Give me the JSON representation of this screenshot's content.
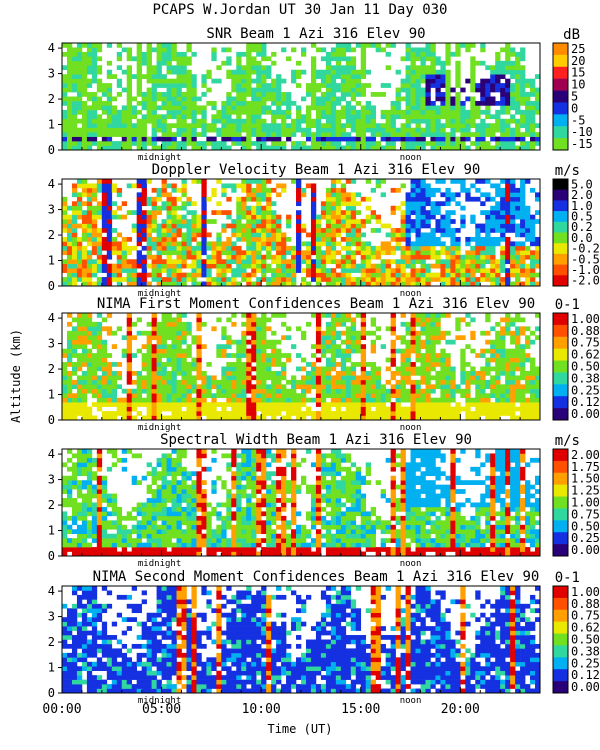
{
  "header": {
    "title": "PCAPS W.Jordan UT  30 Jan 11 Day 030"
  },
  "x_axis": {
    "label": "Time (UT)",
    "ticks": [
      "00:00",
      "05:00",
      "10:00",
      "15:00",
      "20:00"
    ],
    "markers": [
      "midnight",
      "noon"
    ]
  },
  "y_axis": {
    "label": "Altitude (km)",
    "ticks": [
      "0",
      "1",
      "2",
      "3",
      "4"
    ]
  },
  "colors": {
    "accent_dark": "#2a0078",
    "accent_blue": "#1530e0",
    "accent_green": "#70e020"
  },
  "chart_data": [
    {
      "type": "heatmap",
      "title": "SNR Beam 1 Azi 316 Elev 90",
      "unit": "dB",
      "x_range_hours": [
        0,
        24
      ],
      "y_range_km": [
        0,
        4.2
      ],
      "colorbar": [
        "25",
        "20",
        "15",
        "10",
        "5",
        "0",
        "-5",
        "-10",
        "-15"
      ],
      "colors": [
        "#ff8c00",
        "#ffcc00",
        "#ff2020",
        "#a00050",
        "#2a0078",
        "#1530e0",
        "#00b0f0",
        "#30d8a0",
        "#70e020"
      ]
    },
    {
      "type": "heatmap",
      "title": "Doppler Velocity Beam 1 Azi 316 Elev 90",
      "unit": "m/s",
      "x_range_hours": [
        0,
        24
      ],
      "y_range_km": [
        0,
        4.2
      ],
      "colorbar": [
        "5.0",
        "2.0",
        "1.0",
        "0.5",
        "0.2",
        "0.0",
        "-0.2",
        "-0.5",
        "-1.0",
        "-2.0"
      ],
      "colors": [
        "#000000",
        "#2a0078",
        "#1530e0",
        "#00b0f0",
        "#30d8a0",
        "#70e020",
        "#e8e800",
        "#ffa000",
        "#ff5000",
        "#e00000"
      ]
    },
    {
      "type": "heatmap",
      "title": "NIMA First Moment Confidences Beam 1 Azi 316 Elev 90",
      "unit": "0-1",
      "x_range_hours": [
        0,
        24
      ],
      "y_range_km": [
        0,
        4.2
      ],
      "colorbar": [
        "1.00",
        "0.88",
        "0.75",
        "0.62",
        "0.50",
        "0.38",
        "0.25",
        "0.12",
        "0.00"
      ],
      "colors": [
        "#e00000",
        "#ff5000",
        "#ffa000",
        "#e8e800",
        "#70e020",
        "#30d8a0",
        "#00b0f0",
        "#1530e0",
        "#2a0078"
      ]
    },
    {
      "type": "heatmap",
      "title": "Spectral Width Beam 1 Azi 316 Elev 90",
      "unit": "m/s",
      "x_range_hours": [
        0,
        24
      ],
      "y_range_km": [
        0,
        4.2
      ],
      "colorbar": [
        "2.00",
        "1.75",
        "1.50",
        "1.25",
        "1.00",
        "0.75",
        "0.50",
        "0.25",
        "0.00"
      ],
      "colors": [
        "#e00000",
        "#ff5000",
        "#ffa000",
        "#e8e800",
        "#70e020",
        "#30d8a0",
        "#00b0f0",
        "#1530e0",
        "#2a0078"
      ]
    },
    {
      "type": "heatmap",
      "title": "NIMA Second Moment Confidences Beam 1 Azi 316 Elev 90",
      "unit": "0-1",
      "x_range_hours": [
        0,
        24
      ],
      "y_range_km": [
        0,
        4.2
      ],
      "colorbar": [
        "1.00",
        "0.88",
        "0.75",
        "0.62",
        "0.50",
        "0.38",
        "0.25",
        "0.12",
        "0.00"
      ],
      "colors": [
        "#e00000",
        "#ff5000",
        "#ffa000",
        "#e8e800",
        "#70e020",
        "#30d8a0",
        "#00b0f0",
        "#1530e0",
        "#2a0078"
      ]
    }
  ]
}
